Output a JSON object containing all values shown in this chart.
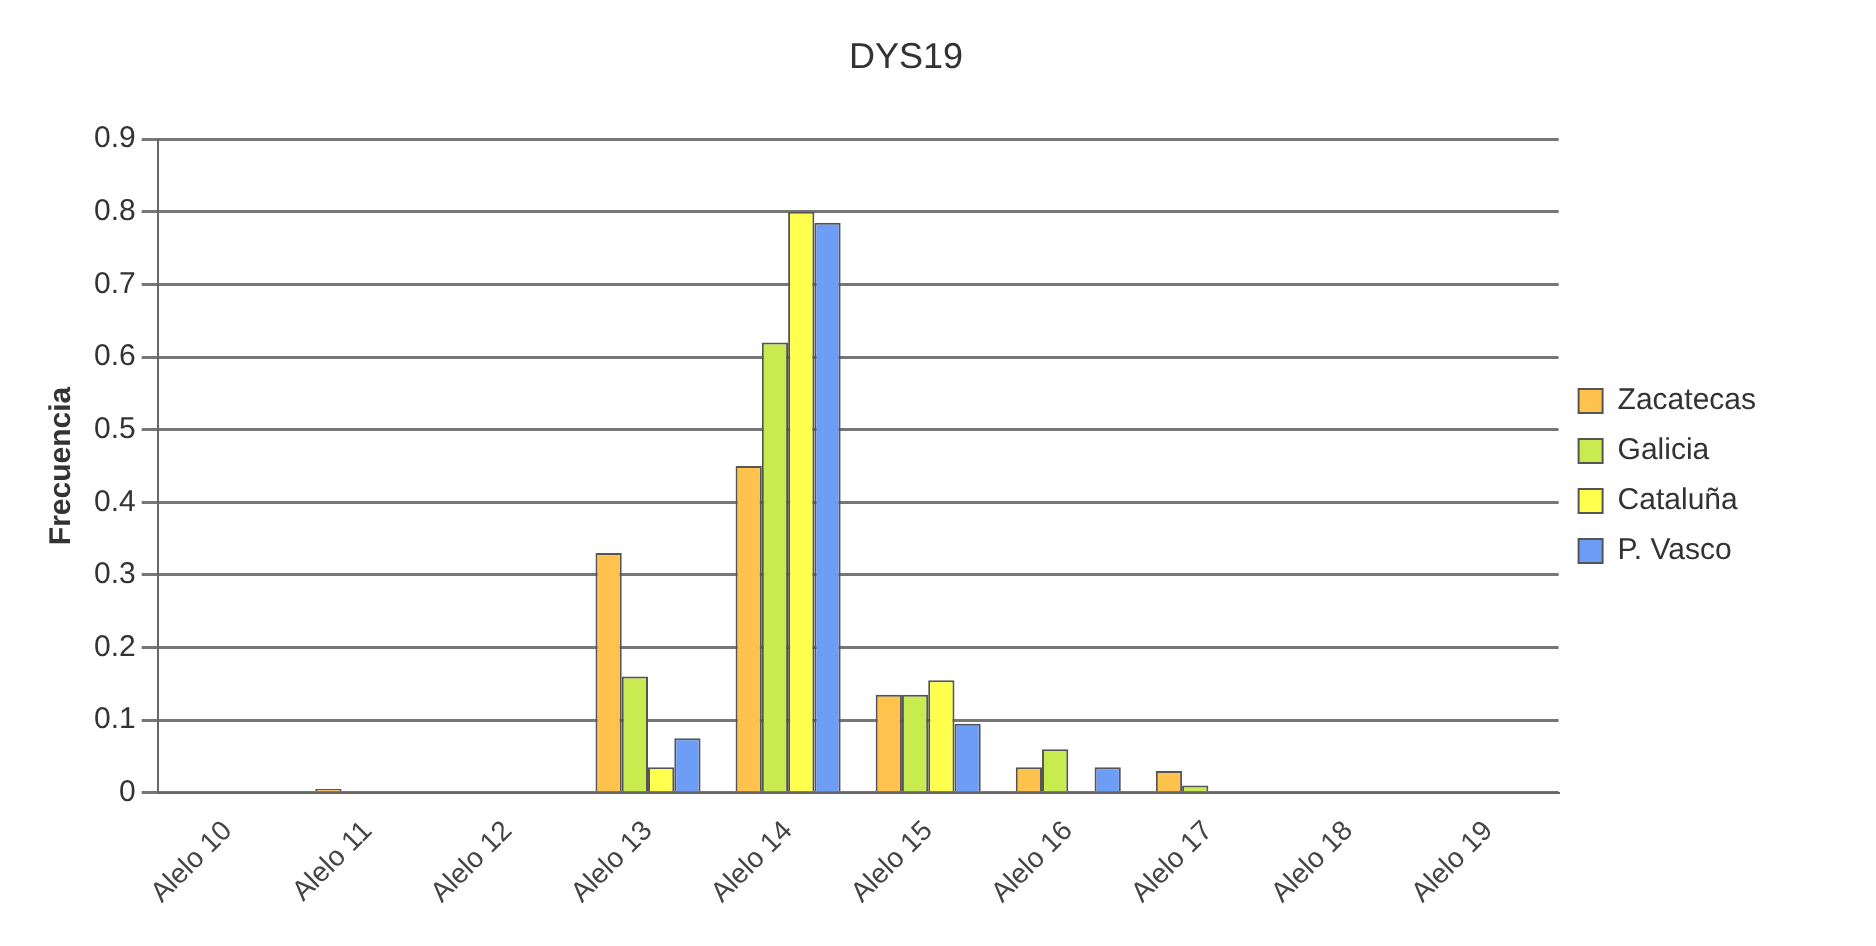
{
  "chart_data": {
    "type": "bar",
    "title": "DYS19",
    "ylabel": "Frecuencia",
    "categories": [
      "Alelo 10",
      "Alelo 11",
      "Alelo 12",
      "Alelo 13",
      "Alelo 14",
      "Alelo 15",
      "Alelo 16",
      "Alelo 17",
      "Alelo 18",
      "Alelo 19"
    ],
    "series": [
      {
        "name": "Zacatecas",
        "color": "#ffc24d",
        "values": [
          0,
          0.005,
          0,
          0.33,
          0.45,
          0.135,
          0.035,
          0.03,
          0,
          0
        ]
      },
      {
        "name": "Galicia",
        "color": "#c8ec4f",
        "values": [
          0,
          0,
          0,
          0.16,
          0.62,
          0.135,
          0.06,
          0.01,
          0,
          0
        ]
      },
      {
        "name": "Cataluña",
        "color": "#ffff4d",
        "values": [
          0,
          0,
          0,
          0.035,
          0.8,
          0.155,
          0,
          0,
          0,
          0
        ]
      },
      {
        "name": "P. Vasco",
        "color": "#6e9df5",
        "values": [
          0,
          0,
          0,
          0.075,
          0.785,
          0.095,
          0.035,
          0,
          0,
          0
        ]
      }
    ],
    "ylim": [
      0,
      0.9
    ],
    "yticks": [
      0,
      0.1,
      0.2,
      0.3,
      0.4,
      0.5,
      0.6,
      0.7,
      0.8,
      0.9
    ],
    "grid": "y",
    "legend": "right"
  }
}
